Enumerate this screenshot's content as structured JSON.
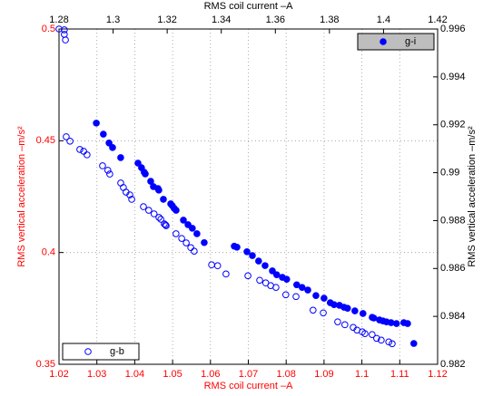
{
  "chart_data": {
    "type": "scatter",
    "xlabel": "RMS coil current –A",
    "ylabel": "RMS vertical acceleration –m/s²",
    "x2label": "RMS coil current –A",
    "y2label": "RMS vertical acceleration –m/s²",
    "primary_axis_color": "#ff0000",
    "secondary_axis_color": "#000000",
    "xlim": [
      1.02,
      1.12
    ],
    "xticks": [
      1.02,
      1.03,
      1.04,
      1.05,
      1.06,
      1.07,
      1.08,
      1.09,
      1.1,
      1.11,
      1.12
    ],
    "ylim": [
      0.35,
      0.5
    ],
    "yticks": [
      0.35,
      0.4,
      0.45,
      0.5
    ],
    "x2lim": [
      1.28,
      1.42
    ],
    "x2ticks": [
      1.28,
      1.3,
      1.32,
      1.34,
      1.36,
      1.38,
      1.4,
      1.42
    ],
    "y2lim": [
      0.982,
      0.996
    ],
    "y2ticks": [
      0.982,
      0.984,
      0.986,
      0.988,
      0.99,
      0.992,
      0.994,
      0.996
    ],
    "grid": true,
    "series": [
      {
        "name": "g-b",
        "color": "#0000ff",
        "marker": "open",
        "legend": "lower left",
        "legend_fill": "#ffffff",
        "x": [
          1.02,
          1.0214,
          1.0214,
          1.0217,
          1.0219,
          1.0229,
          1.0255,
          1.0265,
          1.0274,
          1.0315,
          1.0329,
          1.0334,
          1.0363,
          1.037,
          1.0377,
          1.0387,
          1.0392,
          1.0423,
          1.0437,
          1.0451,
          1.0464,
          1.0469,
          1.0478,
          1.0481,
          1.0483,
          1.0509,
          1.0524,
          1.0536,
          1.0548,
          1.0557,
          1.0603,
          1.0619,
          1.0641,
          1.0699,
          1.073,
          1.0746,
          1.0759,
          1.0773,
          1.0799,
          1.0826,
          1.0871,
          1.0898,
          1.0936,
          1.0955,
          1.0977,
          1.0987,
          1.1001,
          1.1008,
          1.1027,
          1.1039,
          1.1051,
          1.1071,
          1.108
        ],
        "values": [
          0.5,
          0.4996,
          0.4976,
          0.4951,
          0.4518,
          0.4498,
          0.4461,
          0.4453,
          0.4437,
          0.4388,
          0.4368,
          0.4351,
          0.4311,
          0.4291,
          0.427,
          0.4258,
          0.4238,
          0.4205,
          0.4189,
          0.4173,
          0.4157,
          0.4149,
          0.4128,
          0.4124,
          0.412,
          0.4084,
          0.4063,
          0.4043,
          0.4022,
          0.4006,
          0.3945,
          0.3941,
          0.3904,
          0.3896,
          0.3876,
          0.3864,
          0.3852,
          0.3844,
          0.3811,
          0.3803,
          0.3742,
          0.373,
          0.369,
          0.3677,
          0.3665,
          0.3653,
          0.3645,
          0.3637,
          0.3633,
          0.3616,
          0.3608,
          0.36,
          0.3592
        ]
      },
      {
        "name": "g-i",
        "color": "#0000ff",
        "marker": "filled",
        "legend": "upper right",
        "legend_fill": "#bebebe",
        "axis": "y2",
        "x": [
          1.2938,
          1.2964,
          1.2985,
          1.2998,
          1.3028,
          1.3092,
          1.3105,
          1.3115,
          1.3119,
          1.3139,
          1.3149,
          1.3166,
          1.3169,
          1.3186,
          1.3213,
          1.3219,
          1.3226,
          1.3233,
          1.326,
          1.3277,
          1.3293,
          1.331,
          1.3337,
          1.3448,
          1.3458,
          1.3495,
          1.3515,
          1.3538,
          1.3562,
          1.3589,
          1.3605,
          1.3626,
          1.3642,
          1.3679,
          1.3699,
          1.372,
          1.375,
          1.378,
          1.3803,
          1.3817,
          1.3837,
          1.3854,
          1.3867,
          1.3894,
          1.3924,
          1.3958,
          1.3964,
          1.3985,
          1.3998,
          1.4011,
          1.4028,
          1.4048,
          1.4075,
          1.4089,
          1.4112
        ],
        "values": [
          0.99207,
          0.99161,
          0.99124,
          0.99105,
          0.99063,
          0.9904,
          0.99021,
          0.99002,
          0.98995,
          0.98964,
          0.98942,
          0.98934,
          0.98927,
          0.98889,
          0.9887,
          0.98862,
          0.98851,
          0.98843,
          0.98802,
          0.98783,
          0.98768,
          0.98745,
          0.98708,
          0.98693,
          0.98689,
          0.9867,
          0.98654,
          0.98631,
          0.98612,
          0.9859,
          0.98574,
          0.98563,
          0.98555,
          0.98532,
          0.98521,
          0.9851,
          0.98487,
          0.98476,
          0.98457,
          0.98449,
          0.98446,
          0.98438,
          0.98434,
          0.98423,
          0.98412,
          0.98396,
          0.98393,
          0.98385,
          0.98381,
          0.98377,
          0.98374,
          0.9837,
          0.98374,
          0.9837,
          0.98287
        ]
      }
    ]
  }
}
